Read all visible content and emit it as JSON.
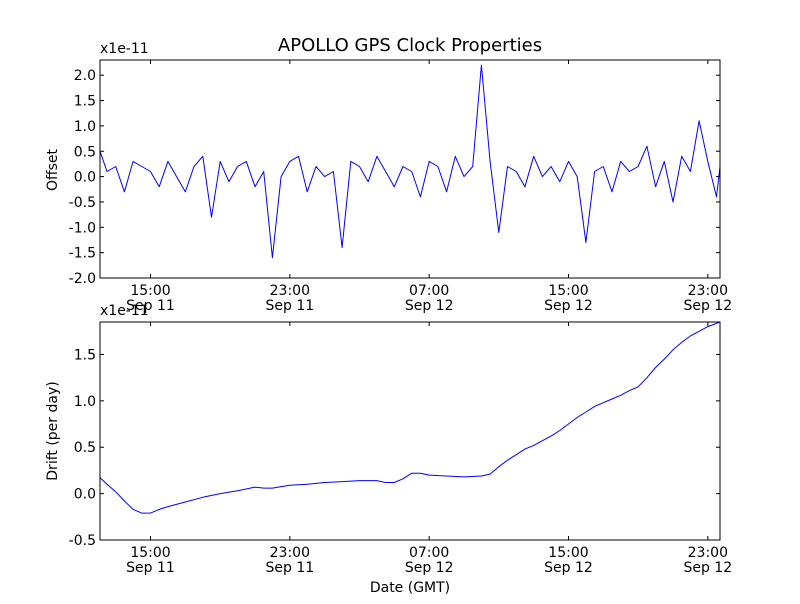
{
  "chart_data": {
    "title": "APOLLO GPS Clock Properties",
    "xlabel": "Date (GMT)",
    "line_color": "#0000ff",
    "x_ticks": [
      {
        "line1": "15:00",
        "line2": "Sep 11",
        "hours": 15
      },
      {
        "line1": "23:00",
        "line2": "Sep 11",
        "hours": 23
      },
      {
        "line1": "07:00",
        "line2": "Sep 12",
        "hours": 31
      },
      {
        "line1": "15:00",
        "line2": "Sep 12",
        "hours": 39
      },
      {
        "line1": "23:00",
        "line2": "Sep 12",
        "hours": 47
      }
    ],
    "xlim_hours": [
      12.1,
      47.7
    ],
    "panels": [
      {
        "type": "line",
        "ylabel": "Offset",
        "multiplier": "x1e-11",
        "ylim": [
          -2.0,
          2.3
        ],
        "y_ticks": [
          -2.0,
          -1.5,
          -1.0,
          -0.5,
          0.0,
          0.5,
          1.0,
          1.5,
          2.0
        ],
        "y_tick_labels": [
          "-2.0",
          "-1.5",
          "-1.0",
          "-0.5",
          "0.0",
          "0.5",
          "1.0",
          "1.5",
          "2.0"
        ],
        "series": [
          {
            "x_hours": [
              12.1,
              12.5,
              13.0,
              13.5,
              14.0,
              14.5,
              15.0,
              15.5,
              16.0,
              16.5,
              17.0,
              17.5,
              18.0,
              18.5,
              19.0,
              19.5,
              20.0,
              20.5,
              21.0,
              21.5,
              22.0,
              22.5,
              23.0,
              23.5,
              24.0,
              24.5,
              25.0,
              25.5,
              26.0,
              26.5,
              27.0,
              27.5,
              28.0,
              28.5,
              29.0,
              29.5,
              30.0,
              30.5,
              31.0,
              31.5,
              32.0,
              32.5,
              33.0,
              33.5,
              34.0,
              34.5,
              35.0,
              35.5,
              36.0,
              36.5,
              37.0,
              37.5,
              38.0,
              38.5,
              39.0,
              39.5,
              40.0,
              40.5,
              41.0,
              41.5,
              42.0,
              42.5,
              43.0,
              43.5,
              44.0,
              44.5,
              45.0,
              45.5,
              46.0,
              46.5,
              47.0,
              47.5,
              47.7
            ],
            "values": [
              0.5,
              0.1,
              0.2,
              -0.3,
              0.3,
              0.2,
              0.1,
              -0.2,
              0.3,
              0.0,
              -0.3,
              0.2,
              0.4,
              -0.8,
              0.3,
              -0.1,
              0.2,
              0.3,
              -0.2,
              0.1,
              -1.6,
              0.0,
              0.3,
              0.4,
              -0.3,
              0.2,
              0.0,
              0.1,
              -1.4,
              0.3,
              0.2,
              -0.1,
              0.4,
              0.1,
              -0.2,
              0.2,
              0.1,
              -0.4,
              0.3,
              0.2,
              -0.3,
              0.4,
              0.0,
              0.2,
              2.2,
              0.3,
              -1.1,
              0.2,
              0.1,
              -0.2,
              0.4,
              0.0,
              0.2,
              -0.1,
              0.3,
              0.0,
              -1.3,
              0.1,
              0.2,
              -0.3,
              0.3,
              0.1,
              0.2,
              0.6,
              -0.2,
              0.3,
              -0.5,
              0.4,
              0.1,
              1.1,
              0.3,
              -0.4,
              0.2
            ]
          }
        ]
      },
      {
        "type": "line",
        "ylabel": "Drift (per day)",
        "multiplier": "x1e-11",
        "ylim": [
          -0.5,
          1.85
        ],
        "y_ticks": [
          -0.5,
          0.0,
          0.5,
          1.0,
          1.5
        ],
        "y_tick_labels": [
          "-0.5",
          "0.0",
          "0.5",
          "1.0",
          "1.5"
        ],
        "series": [
          {
            "x_hours": [
              12.1,
              12.5,
              13.0,
              13.5,
              14.0,
              14.5,
              15.0,
              15.5,
              16.0,
              17.0,
              18.0,
              19.0,
              20.0,
              21.0,
              21.5,
              22.0,
              23.0,
              24.0,
              25.0,
              26.0,
              27.0,
              28.0,
              28.5,
              29.0,
              29.5,
              30.0,
              30.5,
              31.0,
              32.0,
              33.0,
              34.0,
              34.5,
              35.0,
              35.5,
              36.0,
              36.5,
              37.0,
              37.5,
              38.0,
              38.5,
              39.0,
              39.5,
              40.0,
              40.5,
              41.0,
              41.5,
              42.0,
              42.5,
              43.0,
              43.5,
              44.0,
              44.5,
              45.0,
              45.5,
              46.0,
              46.5,
              47.0,
              47.7
            ],
            "values": [
              0.17,
              0.1,
              0.02,
              -0.08,
              -0.17,
              -0.21,
              -0.21,
              -0.17,
              -0.14,
              -0.09,
              -0.04,
              0.0,
              0.03,
              0.07,
              0.06,
              0.06,
              0.09,
              0.1,
              0.12,
              0.13,
              0.14,
              0.14,
              0.12,
              0.12,
              0.16,
              0.22,
              0.22,
              0.2,
              0.19,
              0.18,
              0.19,
              0.21,
              0.29,
              0.36,
              0.42,
              0.48,
              0.52,
              0.57,
              0.62,
              0.68,
              0.75,
              0.82,
              0.88,
              0.94,
              0.98,
              1.02,
              1.06,
              1.11,
              1.15,
              1.25,
              1.36,
              1.45,
              1.55,
              1.63,
              1.7,
              1.75,
              1.8,
              1.85
            ]
          }
        ]
      }
    ]
  }
}
